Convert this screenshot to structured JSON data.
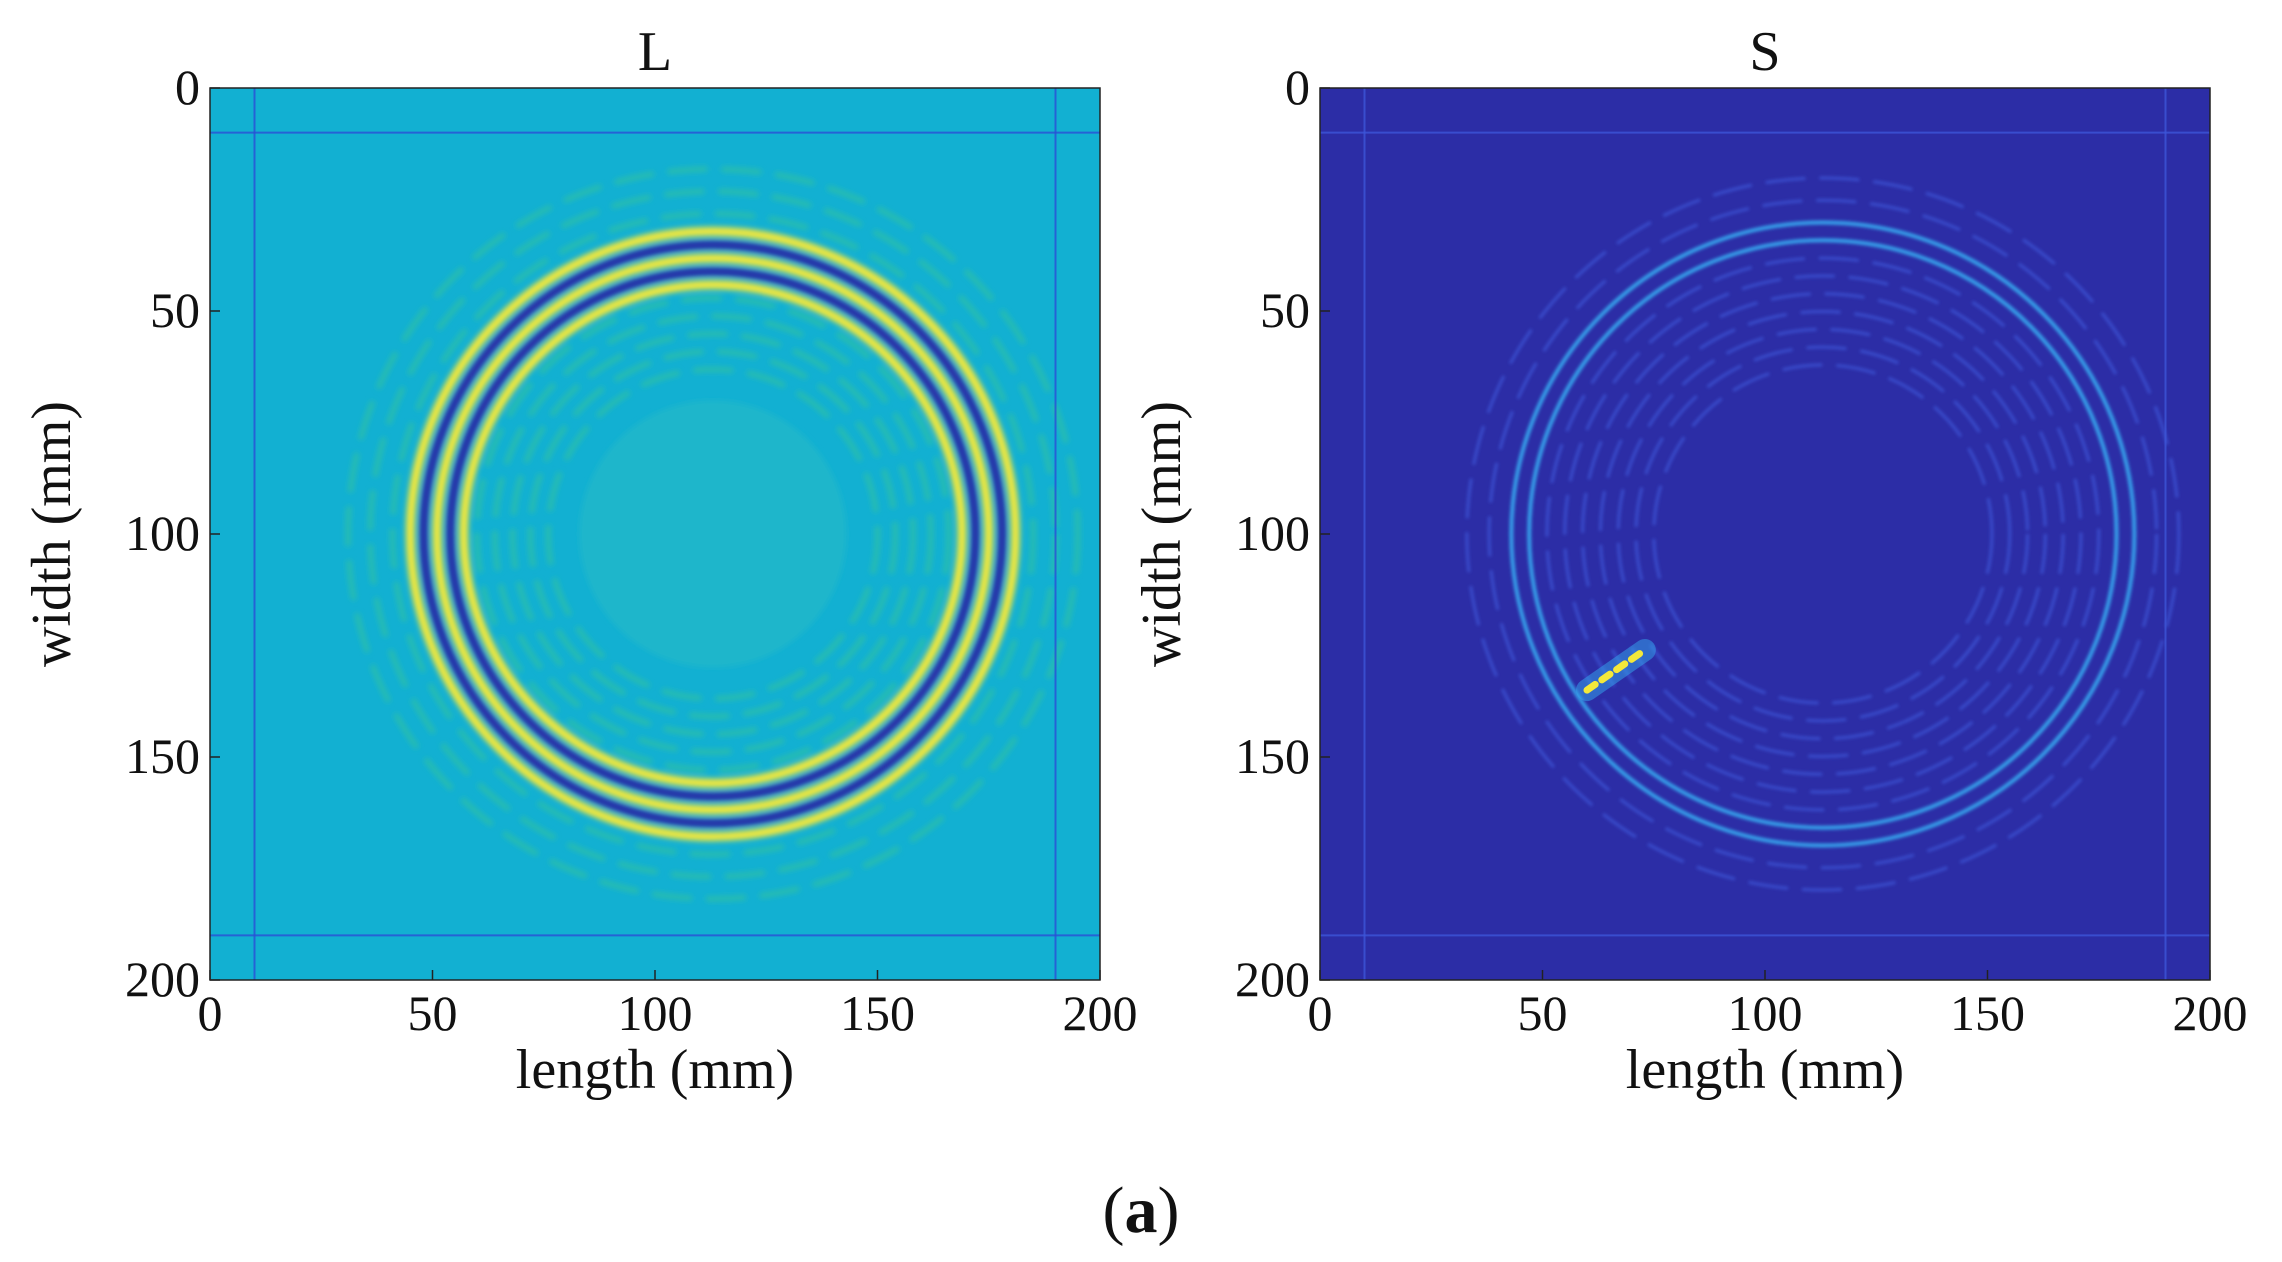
{
  "figure": {
    "caption": {
      "open": "(",
      "label": "a",
      "close": ")"
    }
  },
  "chart_data": [
    {
      "type": "heatmap",
      "title": "L",
      "xlabel": "length (mm)",
      "ylabel": "width (mm)",
      "xlim": [
        0,
        200
      ],
      "ylim": [
        200,
        0
      ],
      "xticks": [
        0,
        50,
        100,
        150,
        200
      ],
      "yticks": [
        0,
        50,
        100,
        150,
        200
      ],
      "colormap": "parula",
      "colors": {
        "background": "#12b0d2",
        "dark": "#2a2fa6",
        "bright": "#f3e83a",
        "mid": "#35c49a"
      },
      "source_center": [
        113,
        100
      ],
      "rings": [
        {
          "radius": 68,
          "kind": "bright"
        },
        {
          "radius": 65,
          "kind": "dark"
        },
        {
          "radius": 62,
          "kind": "bright"
        },
        {
          "radius": 59,
          "kind": "dark"
        },
        {
          "radius": 56,
          "kind": "bright"
        },
        {
          "radius": 53,
          "kind": "mid"
        },
        {
          "radius": 49,
          "kind": "mid"
        },
        {
          "radius": 45,
          "kind": "mid"
        },
        {
          "radius": 41,
          "kind": "mid"
        },
        {
          "radius": 37,
          "kind": "mid"
        },
        {
          "radius": 72,
          "kind": "mid"
        },
        {
          "radius": 77,
          "kind": "mid"
        },
        {
          "radius": 82,
          "kind": "mid"
        }
      ],
      "boundary_lines": {
        "x": [
          10,
          190
        ],
        "y": [
          10,
          190
        ]
      }
    },
    {
      "type": "heatmap",
      "title": "S",
      "xlabel": "length (mm)",
      "ylabel": "width (mm)",
      "xlim": [
        0,
        200
      ],
      "ylim": [
        200,
        0
      ],
      "xticks": [
        0,
        50,
        100,
        150,
        200
      ],
      "yticks": [
        0,
        50,
        100,
        150,
        200
      ],
      "colormap": "parula",
      "colors": {
        "background": "#2c2da6",
        "faint": "#3d56d8",
        "bright": "#35a8ef",
        "hot": "#f3e83a"
      },
      "source_center": [
        113,
        100
      ],
      "rings": [
        {
          "radius": 70,
          "kind": "bright"
        },
        {
          "radius": 66,
          "kind": "bright"
        },
        {
          "radius": 62,
          "kind": "faint"
        },
        {
          "radius": 58,
          "kind": "faint"
        },
        {
          "radius": 54,
          "kind": "faint"
        },
        {
          "radius": 50,
          "kind": "faint"
        },
        {
          "radius": 46,
          "kind": "faint"
        },
        {
          "radius": 42,
          "kind": "faint"
        },
        {
          "radius": 38,
          "kind": "faint"
        },
        {
          "radius": 75,
          "kind": "faint"
        },
        {
          "radius": 80,
          "kind": "faint"
        }
      ],
      "defect": {
        "x": [
          60,
          73
        ],
        "y": [
          135,
          126
        ]
      },
      "boundary_lines": {
        "x": [
          10,
          190
        ],
        "y": [
          10,
          190
        ]
      }
    }
  ]
}
